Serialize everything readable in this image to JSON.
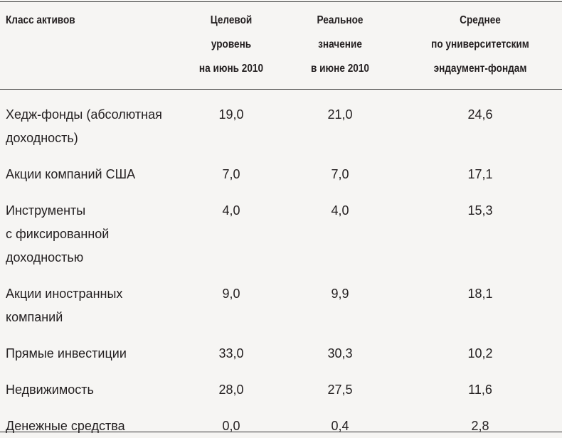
{
  "table": {
    "header": [
      "Класс активов",
      "Целевой\nуровень\nна июнь 2010",
      "Реальное\nзначение\nв июне 2010",
      "Среднее\nпо университетским\nэндаумент-фондам"
    ],
    "rows": [
      [
        "Хедж-фонды (абсолютная\nдоходность)",
        "19,0",
        "21,0",
        "24,6"
      ],
      [
        "Акции компаний США",
        "7,0",
        "7,0",
        "17,1"
      ],
      [
        "Инструменты\nс фиксированной\nдоходностью",
        "4,0",
        "4,0",
        "15,3"
      ],
      [
        "Акции иностранных\nкомпаний",
        "9,0",
        "9,9",
        "18,1"
      ],
      [
        "Прямые инвестиции",
        "33,0",
        "30,3",
        "10,2"
      ],
      [
        "Недвижимость",
        "28,0",
        "27,5",
        "11,6"
      ],
      [
        "Денежные средства",
        "0,0",
        "0,4",
        "2,8"
      ]
    ]
  }
}
